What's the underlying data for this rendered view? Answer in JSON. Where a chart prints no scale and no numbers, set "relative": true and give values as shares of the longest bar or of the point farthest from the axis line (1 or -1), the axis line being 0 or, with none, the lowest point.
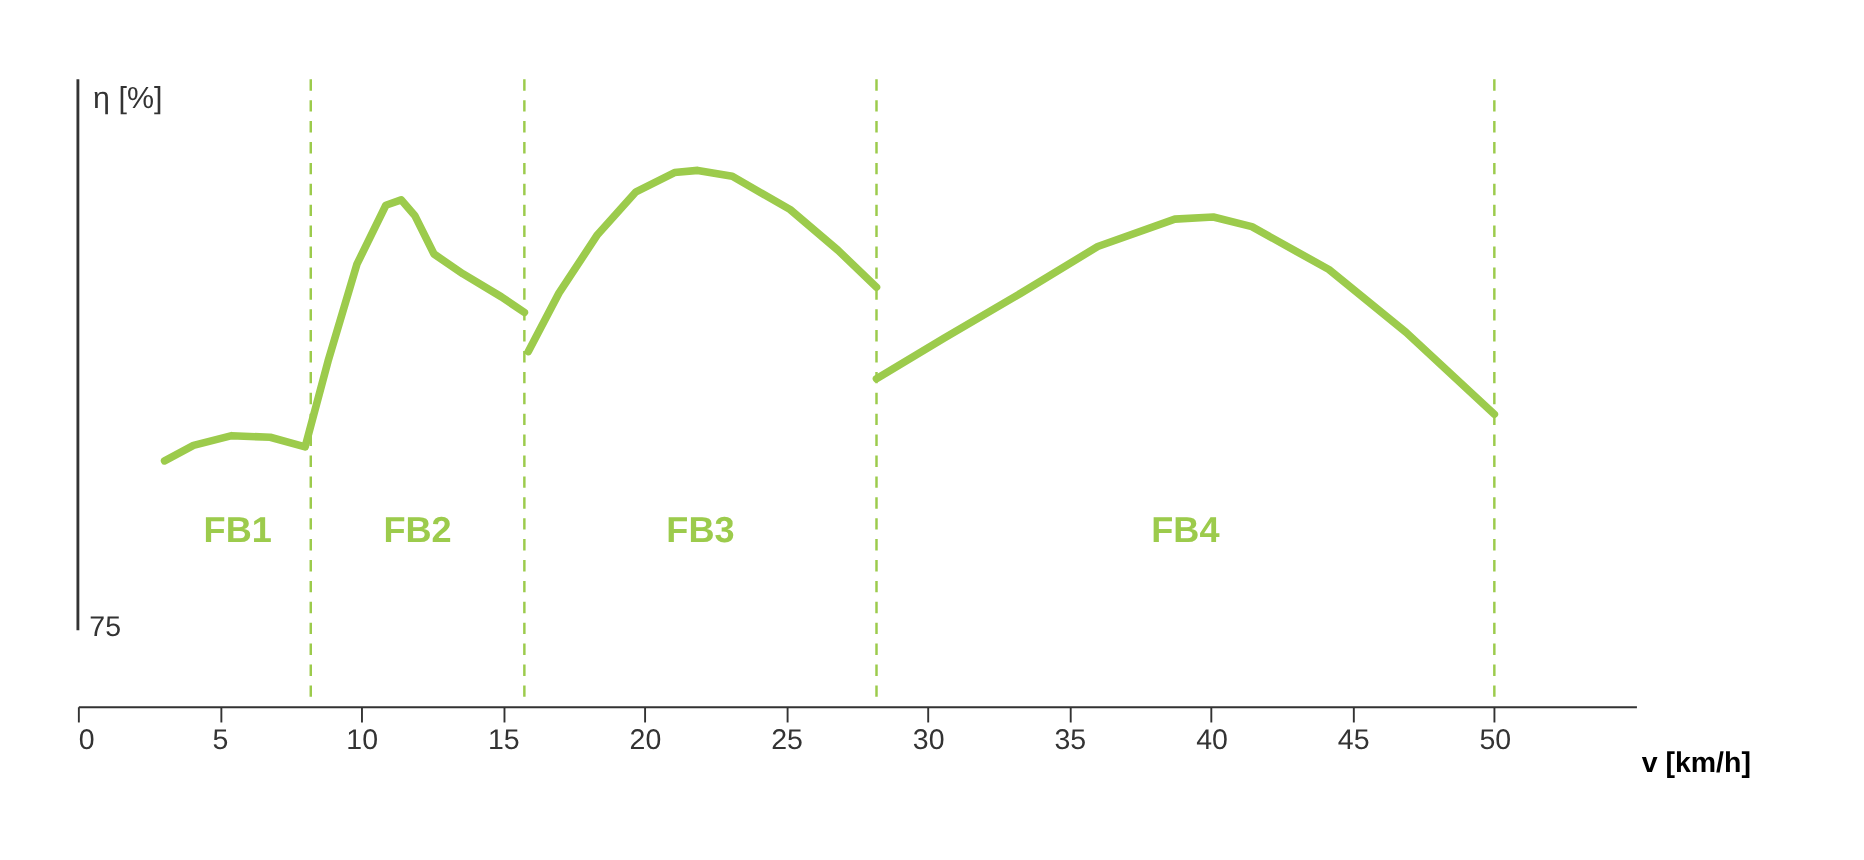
{
  "chart_data": {
    "type": "line",
    "relative": true,
    "ylabel": "η [%]",
    "xlabel": "v [km/h]",
    "xlim": [
      0,
      55
    ],
    "xticks": [
      0,
      5,
      10,
      15,
      20,
      25,
      30,
      35,
      40,
      45,
      50
    ],
    "grid": false,
    "marker": "none",
    "line_style": "solid",
    "series": [
      {
        "color": "#9ccb4c",
        "x": [
          3.06,
          4.08,
          5.43,
          6.79,
          8.02,
          8.83,
          9.85,
          10.87,
          11.41,
          11.89,
          12.57,
          13.59,
          14.95,
          15.76
        ],
        "values": [
          0.458,
          0.487,
          0.505,
          0.502,
          0.484,
          0.644,
          0.825,
          0.935,
          0.945,
          0.916,
          0.844,
          0.807,
          0.764,
          0.735
        ]
      },
      {
        "color": "#9ccb4c",
        "x": [
          15.9,
          16.98,
          18.34,
          19.7,
          21.06,
          21.88,
          23.1,
          25.14,
          26.83,
          28.19
        ],
        "values": [
          0.662,
          0.771,
          0.88,
          0.96,
          0.996,
          1.0,
          0.989,
          0.927,
          0.851,
          0.782
        ]
      },
      {
        "color": "#9ccb4c",
        "x": [
          28.19,
          30.57,
          33.29,
          36.0,
          38.72,
          40.08,
          41.44,
          44.16,
          46.88,
          50.0
        ],
        "values": [
          0.611,
          0.687,
          0.771,
          0.858,
          0.909,
          0.913,
          0.895,
          0.815,
          0.698,
          0.545
        ]
      }
    ],
    "ref_lines": [
      {
        "axis": "x",
        "value": 8.22,
        "color": "#9ccb4c",
        "line_style": "dashed"
      },
      {
        "axis": "x",
        "value": 15.76,
        "color": "#9ccb4c",
        "line_style": "dashed"
      },
      {
        "axis": "x",
        "value": 28.19,
        "color": "#9ccb4c",
        "line_style": "dashed"
      },
      {
        "axis": "x",
        "value": 50,
        "color": "#9ccb4c",
        "line_style": "dashed"
      }
    ],
    "annotations": [
      "FB1",
      "FB2",
      "FB3",
      "FB4",
      "75"
    ]
  }
}
